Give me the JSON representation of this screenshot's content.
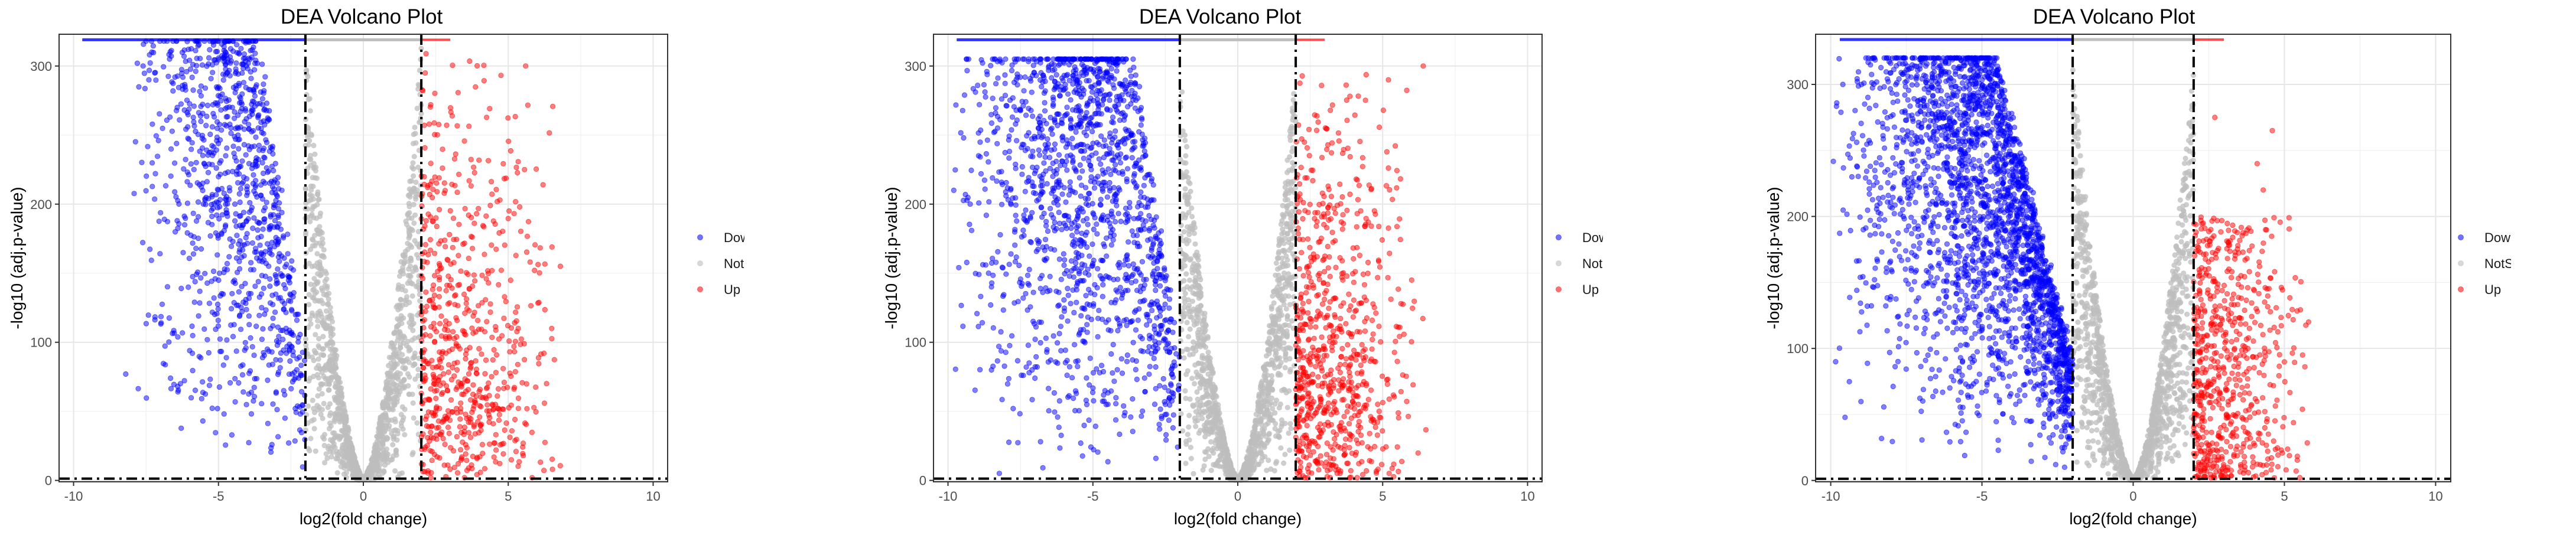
{
  "chart_data": [
    {
      "type": "scatter",
      "title": "DEA Volcano Plot",
      "xlabel": "log2(fold change)",
      "ylabel": "-log10 (adj.p-value)",
      "xlim": [
        -10.5,
        10.5
      ],
      "ylim": [
        -1,
        323
      ],
      "xticks": [
        -10,
        -5,
        0,
        5,
        10
      ],
      "yticks": [
        0,
        100,
        200,
        300
      ],
      "thresholds": {
        "log2fc": 2,
        "neg_log10_p": 1.3
      },
      "grid": true,
      "legend_position": "right",
      "legend": [
        "Down",
        "NotSig",
        "Up"
      ],
      "colors": {
        "Down": "#0000ff",
        "NotSig": "#bebebe",
        "Up": "#ff0000"
      },
      "series_shape": {
        "Down": {
          "x_min": -8.0,
          "x_max": -2.0,
          "y_cap": 318,
          "n": 1000,
          "shape": "steep"
        },
        "NotSig": {
          "x_min": -2.0,
          "x_max": 2.0,
          "y_cap": 318,
          "n": 1300
        },
        "Up": {
          "x_min": 2.0,
          "x_max": 7.0,
          "y_cap": 318,
          "n": 650,
          "shape": "spread"
        }
      },
      "extra_points": [
        {
          "series": "Down",
          "x": -7.5,
          "y": 318
        },
        {
          "series": "Down",
          "x": -7.3,
          "y": 310
        },
        {
          "series": "Down",
          "x": -7.6,
          "y": 300
        },
        {
          "series": "Down",
          "x": -7.2,
          "y": 295
        },
        {
          "series": "Down",
          "x": -7.8,
          "y": 302
        },
        {
          "series": "Down",
          "x": -7.4,
          "y": 290
        },
        {
          "series": "Down",
          "x": -8.2,
          "y": 77
        },
        {
          "series": "Down",
          "x": -5.9,
          "y": 92
        },
        {
          "series": "Up",
          "x": 6.2,
          "y": 214
        },
        {
          "series": "Up",
          "x": 6.8,
          "y": 155
        },
        {
          "series": "Up",
          "x": 6.5,
          "y": 110
        },
        {
          "series": "Up",
          "x": 5.6,
          "y": 300
        }
      ]
    },
    {
      "type": "scatter",
      "title": "DEA Volcano Plot",
      "xlabel": "log2(fold change)",
      "ylabel": "-log10 (adj.p-value)",
      "xlim": [
        -10.5,
        10.5
      ],
      "ylim": [
        -1,
        323
      ],
      "xticks": [
        -10,
        -5,
        0,
        5,
        10
      ],
      "yticks": [
        0,
        100,
        200,
        300
      ],
      "thresholds": {
        "log2fc": 2,
        "neg_log10_p": 1.3
      },
      "grid": true,
      "legend_position": "right",
      "legend": [
        "Down",
        "NotSig",
        "Up"
      ],
      "colors": {
        "Down": "#0000ff",
        "NotSig": "#bebebe",
        "Up": "#ff0000"
      },
      "series_shape": {
        "Down": {
          "x_min": -10.0,
          "x_max": -2.0,
          "y_cap": 305,
          "n": 1500,
          "shape": "steep"
        },
        "NotSig": {
          "x_min": -2.0,
          "x_max": 2.0,
          "y_cap": 305,
          "n": 1300
        },
        "Up": {
          "x_min": 2.0,
          "x_max": 6.5,
          "y_cap": 305,
          "n": 750,
          "shape": "spread"
        }
      },
      "extra_points": [
        {
          "series": "Down",
          "x": -7.2,
          "y": 85
        },
        {
          "series": "Down",
          "x": -7.3,
          "y": 82
        },
        {
          "series": "Down",
          "x": -7.1,
          "y": 80
        },
        {
          "series": "Down",
          "x": -7.2,
          "y": 78
        },
        {
          "series": "Down",
          "x": -7.4,
          "y": 76
        },
        {
          "series": "Down",
          "x": -7.0,
          "y": 74
        },
        {
          "series": "Down",
          "x": -8.5,
          "y": 80
        },
        {
          "series": "Down",
          "x": -9.8,
          "y": 210
        },
        {
          "series": "Down",
          "x": -8.6,
          "y": 150
        },
        {
          "series": "Up",
          "x": 6.4,
          "y": 300
        },
        {
          "series": "Up",
          "x": 6.0,
          "y": 145
        },
        {
          "series": "Up",
          "x": 5.2,
          "y": 290
        }
      ]
    },
    {
      "type": "scatter",
      "title": "DEA Volcano Plot",
      "xlabel": "log2(fold change)",
      "ylabel": "-log10 (adj.p-value)",
      "xlim": [
        -10.5,
        10.5
      ],
      "ylim": [
        -1,
        338
      ],
      "xticks": [
        -10,
        -5,
        0,
        5,
        10
      ],
      "yticks": [
        0,
        100,
        200,
        300
      ],
      "thresholds": {
        "log2fc": 2,
        "neg_log10_p": 1.3
      },
      "grid": true,
      "legend_position": "right",
      "legend": [
        "Down",
        "NotSig",
        "Up"
      ],
      "colors": {
        "Down": "#0000ff",
        "NotSig": "#bebebe",
        "Up": "#ff0000"
      },
      "series_shape": {
        "Down": {
          "x_min": -10.0,
          "x_max": -2.0,
          "y_cap": 320,
          "n": 2600,
          "shape": "dense"
        },
        "NotSig": {
          "x_min": -2.0,
          "x_max": 2.0,
          "y_cap": 320,
          "n": 1400
        },
        "Up": {
          "x_min": 2.0,
          "x_max": 6.0,
          "y_cap": 320,
          "n": 650,
          "shape": "low"
        }
      },
      "extra_points": [
        {
          "series": "Up",
          "x": 2.7,
          "y": 275
        },
        {
          "series": "Up",
          "x": 4.6,
          "y": 265
        },
        {
          "series": "Up",
          "x": 4.1,
          "y": 240
        },
        {
          "series": "Up",
          "x": 4.3,
          "y": 220
        },
        {
          "series": "Up",
          "x": 5.8,
          "y": 120
        },
        {
          "series": "Up",
          "x": 5.6,
          "y": 95
        },
        {
          "series": "Down",
          "x": -9.6,
          "y": 300
        },
        {
          "series": "Down",
          "x": -9.3,
          "y": 230
        }
      ]
    }
  ]
}
